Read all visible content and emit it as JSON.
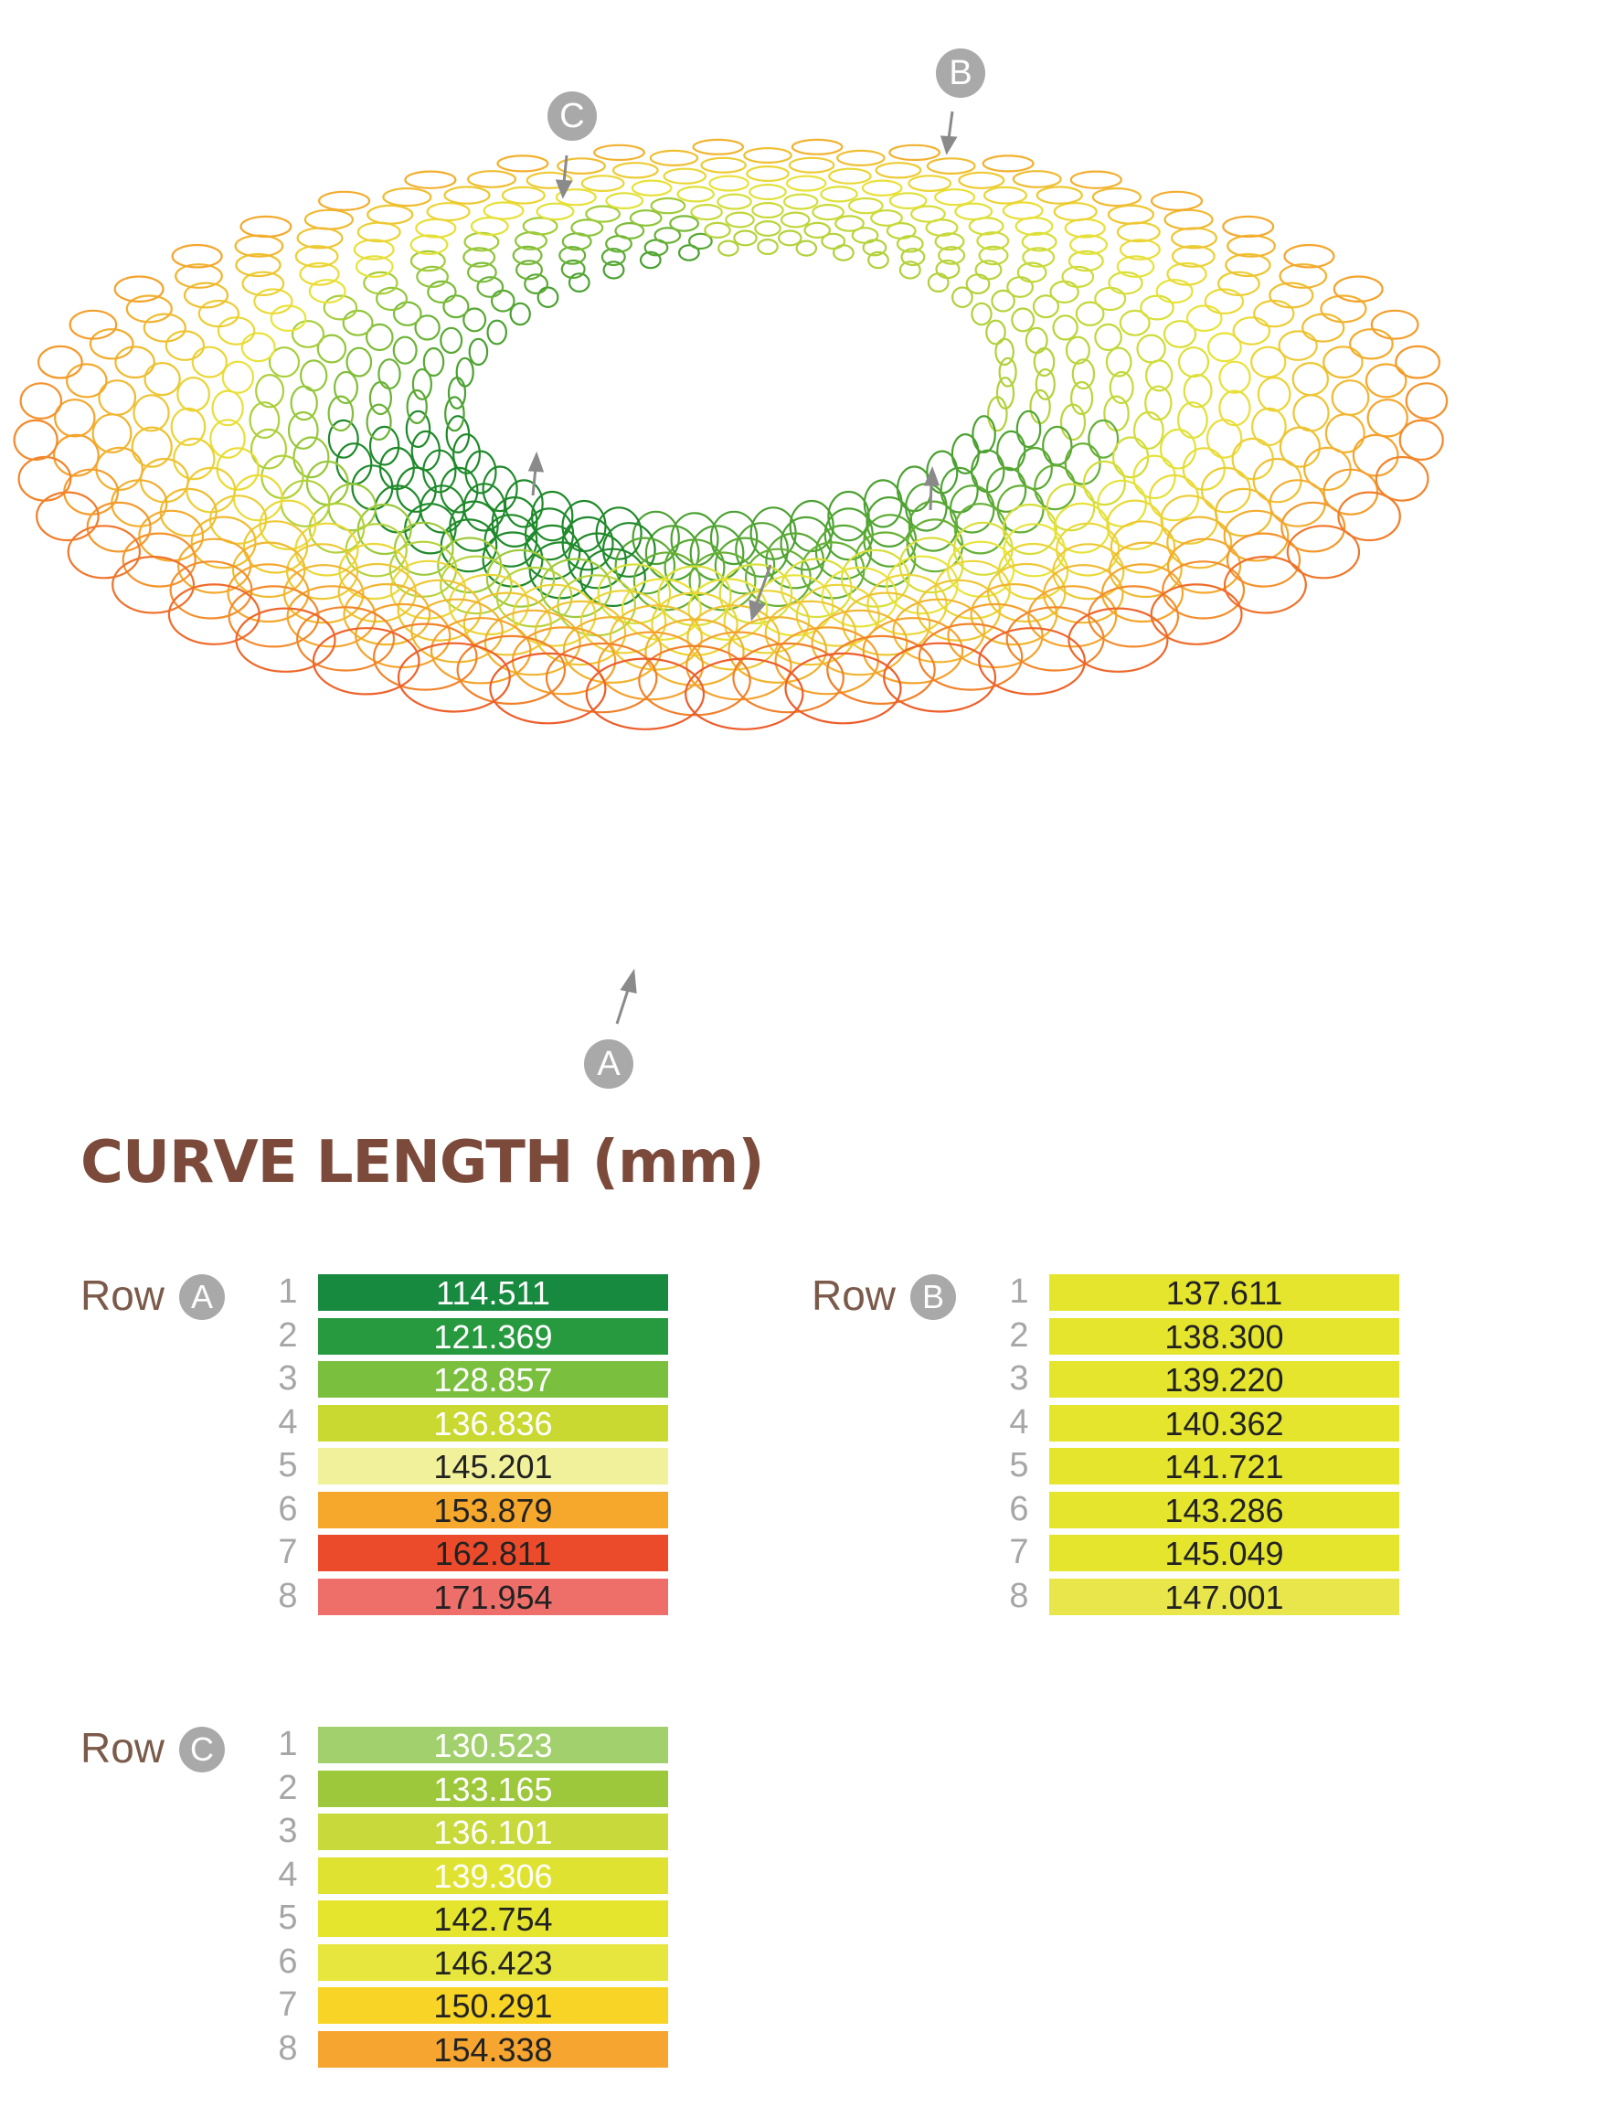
{
  "markers": [
    {
      "id": "A",
      "label": "A"
    },
    {
      "id": "B",
      "label": "B"
    },
    {
      "id": "C",
      "label": "C"
    }
  ],
  "title": "CURVE LENGTH (mm)",
  "row_word": "Row",
  "tables": [
    {
      "id": "A",
      "badge": "A",
      "rows": [
        {
          "index": "1",
          "value": "114.511",
          "color": "#178a40",
          "text": "#ffffff"
        },
        {
          "index": "2",
          "value": "121.369",
          "color": "#27993e",
          "text": "#ffffff"
        },
        {
          "index": "3",
          "value": "128.857",
          "color": "#7bbf3f",
          "text": "#ffffff"
        },
        {
          "index": "4",
          "value": "136.836",
          "color": "#c9d932",
          "text": "#ffffff"
        },
        {
          "index": "5",
          "value": "145.201",
          "color": "#f1f19c",
          "text": "#222222"
        },
        {
          "index": "6",
          "value": "153.879",
          "color": "#f6a82c",
          "text": "#222222"
        },
        {
          "index": "7",
          "value": "162.811",
          "color": "#ec4b2b",
          "text": "#222222"
        },
        {
          "index": "8",
          "value": "171.954",
          "color": "#ee6e6a",
          "text": "#222222"
        }
      ]
    },
    {
      "id": "B",
      "badge": "B",
      "rows": [
        {
          "index": "1",
          "value": "137.611",
          "color": "#e5e52e",
          "text": "#222222"
        },
        {
          "index": "2",
          "value": "138.300",
          "color": "#e5e52e",
          "text": "#222222"
        },
        {
          "index": "3",
          "value": "139.220",
          "color": "#e5e52e",
          "text": "#222222"
        },
        {
          "index": "4",
          "value": "140.362",
          "color": "#e5e52e",
          "text": "#222222"
        },
        {
          "index": "5",
          "value": "141.721",
          "color": "#e5e52e",
          "text": "#222222"
        },
        {
          "index": "6",
          "value": "143.286",
          "color": "#e5e52e",
          "text": "#222222"
        },
        {
          "index": "7",
          "value": "145.049",
          "color": "#e5e52e",
          "text": "#222222"
        },
        {
          "index": "8",
          "value": "147.001",
          "color": "#e8e64a",
          "text": "#222222"
        }
      ]
    },
    {
      "id": "C",
      "badge": "C",
      "rows": [
        {
          "index": "1",
          "value": "130.523",
          "color": "#a2d06c",
          "text": "#ffffff"
        },
        {
          "index": "2",
          "value": "133.165",
          "color": "#9dc83b",
          "text": "#ffffff"
        },
        {
          "index": "3",
          "value": "136.101",
          "color": "#c8d93c",
          "text": "#ffffff"
        },
        {
          "index": "4",
          "value": "139.306",
          "color": "#e0e232",
          "text": "#ffffff"
        },
        {
          "index": "5",
          "value": "142.754",
          "color": "#e5e52e",
          "text": "#222222"
        },
        {
          "index": "6",
          "value": "146.423",
          "color": "#e7e63e",
          "text": "#222222"
        },
        {
          "index": "7",
          "value": "150.291",
          "color": "#f7d426",
          "text": "#222222"
        },
        {
          "index": "8",
          "value": "154.338",
          "color": "#f6a530",
          "text": "#222222"
        }
      ]
    }
  ],
  "colors": {
    "title": "#7b4a3a",
    "row_label": "#7b5a4a",
    "marker": "#a9a9a9",
    "gradient": [
      "#1f8a2a",
      "#8cc43b",
      "#e8e43a",
      "#f5a02c",
      "#e8302a"
    ]
  }
}
